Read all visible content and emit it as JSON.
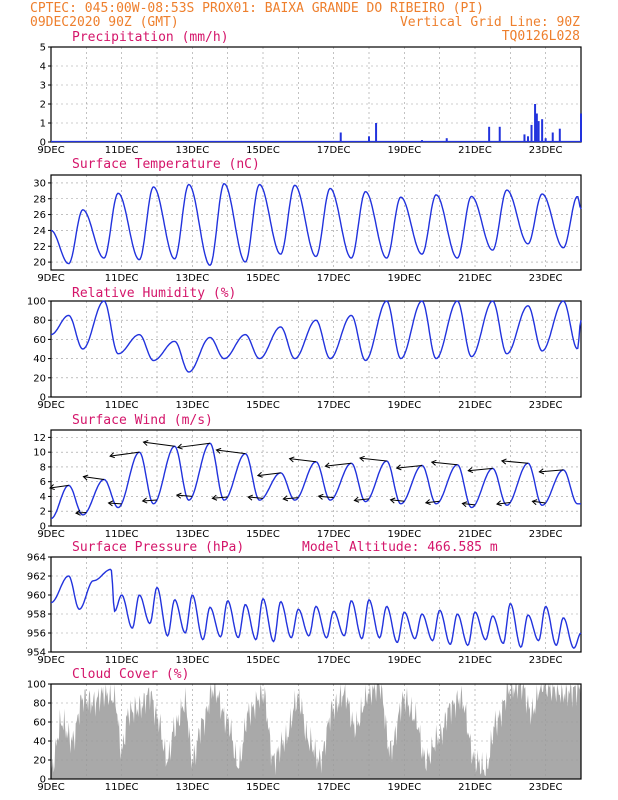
{
  "header": {
    "line1": "CPTEC:  045:00W-08:53S  PROX01: BAIXA GRANDE DO RIBEIRO (PI)",
    "date": "09DEC2020 90Z (GMT)",
    "grid_note": "Vertical Grid Line: 90Z",
    "code": "TQ0126L028"
  },
  "colors": {
    "header": "#ee7f2d",
    "titles": "#d4156a",
    "series": "#2233dd",
    "cloud": "#a9a9a9"
  },
  "x_tick_labels": [
    "9DEC",
    "11DEC",
    "13DEC",
    "15DEC",
    "17DEC",
    "19DEC",
    "21DEC",
    "23DEC"
  ],
  "chart_data": [
    {
      "type": "bar",
      "title": "Precipitation (mm/h)",
      "ylim": [
        0,
        5
      ],
      "y_ticks": [
        0,
        1,
        2,
        3,
        4,
        5
      ],
      "x_range_days": [
        9,
        24
      ],
      "x": [
        9.2,
        10.0,
        12.0,
        14.0,
        16.8,
        17.2,
        18.0,
        18.2,
        19.5,
        20.2,
        21.1,
        21.4,
        21.7,
        22.0,
        22.2,
        22.4,
        22.5,
        22.6,
        22.7,
        22.75,
        22.8,
        22.9,
        23.0,
        23.2,
        23.4,
        24.0
      ],
      "values": [
        0.05,
        0.05,
        0.05,
        0.05,
        0.05,
        0.5,
        0.3,
        1.0,
        0.1,
        0.2,
        0.05,
        0.8,
        0.8,
        0.05,
        0.05,
        0.4,
        0.3,
        0.9,
        2.0,
        1.5,
        1.1,
        1.2,
        0.2,
        0.5,
        0.7,
        1.5
      ]
    },
    {
      "type": "line",
      "title": "Surface Temperature (nC)",
      "ylim": [
        19,
        31
      ],
      "y_ticks": [
        20,
        22,
        24,
        26,
        28,
        30
      ],
      "x_range_days": [
        9,
        24
      ],
      "mins": [
        [
          9.5,
          19.8
        ],
        [
          10.5,
          20.5
        ],
        [
          11.5,
          20.3
        ],
        [
          12.5,
          20.4
        ],
        [
          13.5,
          19.6
        ],
        [
          14.5,
          20.0
        ],
        [
          15.5,
          21.0
        ],
        [
          16.5,
          20.7
        ],
        [
          17.5,
          20.5
        ],
        [
          18.5,
          20.5
        ],
        [
          19.5,
          21.0
        ],
        [
          20.5,
          20.5
        ],
        [
          21.5,
          21.5
        ],
        [
          22.5,
          22.3
        ],
        [
          23.5,
          21.8
        ]
      ],
      "maxs": [
        [
          9.0,
          24.0
        ],
        [
          9.9,
          26.6
        ],
        [
          10.9,
          28.7
        ],
        [
          11.9,
          29.5
        ],
        [
          12.9,
          29.8
        ],
        [
          13.9,
          29.9
        ],
        [
          14.9,
          29.8
        ],
        [
          15.9,
          29.7
        ],
        [
          16.9,
          29.3
        ],
        [
          17.9,
          28.9
        ],
        [
          18.9,
          28.2
        ],
        [
          19.9,
          28.5
        ],
        [
          20.9,
          28.3
        ],
        [
          21.9,
          29.1
        ],
        [
          22.9,
          28.6
        ],
        [
          23.9,
          28.3
        ]
      ],
      "end": [
        24.0,
        26.7
      ]
    },
    {
      "type": "line",
      "title": "Relative Humidity (%)",
      "ylim": [
        0,
        100
      ],
      "y_ticks": [
        0,
        20,
        40,
        60,
        80,
        100
      ],
      "x_range_days": [
        9,
        24
      ],
      "mins": [
        [
          9.0,
          65
        ],
        [
          9.9,
          50
        ],
        [
          10.9,
          45
        ],
        [
          11.9,
          38
        ],
        [
          12.9,
          26
        ],
        [
          13.9,
          40
        ],
        [
          14.9,
          40
        ],
        [
          15.9,
          40
        ],
        [
          16.9,
          40
        ],
        [
          17.9,
          38
        ],
        [
          18.9,
          40
        ],
        [
          19.9,
          40
        ],
        [
          20.9,
          42
        ],
        [
          21.9,
          45
        ],
        [
          22.9,
          48
        ],
        [
          23.9,
          50
        ]
      ],
      "maxs": [
        [
          9.5,
          85
        ],
        [
          10.5,
          100
        ],
        [
          11.5,
          65
        ],
        [
          12.5,
          58
        ],
        [
          13.5,
          62
        ],
        [
          14.5,
          65
        ],
        [
          15.5,
          73
        ],
        [
          16.5,
          80
        ],
        [
          17.5,
          85
        ],
        [
          18.5,
          100
        ],
        [
          19.5,
          100
        ],
        [
          20.5,
          100
        ],
        [
          21.5,
          100
        ],
        [
          22.5,
          95
        ],
        [
          23.5,
          100
        ]
      ],
      "end": [
        24.0,
        80
      ]
    },
    {
      "type": "line",
      "title": "Surface Wind (m/s)",
      "ylim": [
        0,
        13
      ],
      "y_ticks": [
        0,
        2,
        4,
        6,
        8,
        10,
        12
      ],
      "x_range_days": [
        9,
        24
      ],
      "mins": [
        [
          9.0,
          1.0
        ],
        [
          9.9,
          1.5
        ],
        [
          10.9,
          2.5
        ],
        [
          11.9,
          3.0
        ],
        [
          12.9,
          3.5
        ],
        [
          13.9,
          3.5
        ],
        [
          14.9,
          3.5
        ],
        [
          15.9,
          3.5
        ],
        [
          16.9,
          3.5
        ],
        [
          17.9,
          3.3
        ],
        [
          18.9,
          3.0
        ],
        [
          19.9,
          3.0
        ],
        [
          20.9,
          2.5
        ],
        [
          21.9,
          2.8
        ],
        [
          22.9,
          2.8
        ],
        [
          23.9,
          3.0
        ]
      ],
      "maxs": [
        [
          9.5,
          5.5
        ],
        [
          10.5,
          6.3
        ],
        [
          11.5,
          10.0
        ],
        [
          12.5,
          10.8
        ],
        [
          13.5,
          11.2
        ],
        [
          14.5,
          9.8
        ],
        [
          15.5,
          7.2
        ],
        [
          16.5,
          8.7
        ],
        [
          17.5,
          8.5
        ],
        [
          18.5,
          8.8
        ],
        [
          19.5,
          8.2
        ],
        [
          20.5,
          8.3
        ],
        [
          21.5,
          7.8
        ],
        [
          22.5,
          8.5
        ],
        [
          23.5,
          7.6
        ]
      ],
      "end": [
        24.0,
        3.0
      ]
    },
    {
      "type": "line",
      "title": "Surface Pressure (hPa)",
      "annotation": "Model Altitude: 466.585  m",
      "ylim": [
        954,
        964
      ],
      "y_ticks": [
        954,
        956,
        958,
        960,
        962,
        964
      ],
      "x_range_days": [
        9,
        24
      ],
      "mins": [
        [
          9.0,
          959.2
        ],
        [
          9.8,
          958.5
        ],
        [
          10.8,
          958.3
        ],
        [
          11.3,
          956.5
        ],
        [
          11.8,
          957.0
        ],
        [
          12.3,
          955.7
        ],
        [
          12.8,
          956.0
        ],
        [
          13.3,
          955.3
        ],
        [
          13.8,
          955.6
        ],
        [
          14.3,
          955.5
        ],
        [
          14.8,
          955.3
        ],
        [
          15.3,
          955.1
        ],
        [
          15.8,
          955.5
        ],
        [
          16.3,
          955.7
        ],
        [
          16.8,
          955.5
        ],
        [
          17.3,
          955.7
        ],
        [
          17.8,
          955.4
        ],
        [
          18.3,
          955.5
        ],
        [
          18.8,
          955.0
        ],
        [
          19.3,
          955.4
        ],
        [
          19.8,
          955.2
        ],
        [
          20.3,
          954.8
        ],
        [
          20.8,
          954.7
        ],
        [
          21.3,
          955.3
        ],
        [
          21.8,
          954.9
        ],
        [
          22.3,
          954.5
        ],
        [
          22.8,
          955.2
        ],
        [
          23.3,
          954.7
        ],
        [
          23.8,
          954.4
        ]
      ],
      "maxs": [
        [
          9.5,
          962.0
        ],
        [
          10.2,
          961.5
        ],
        [
          10.7,
          962.7
        ],
        [
          11.0,
          960.0
        ],
        [
          11.5,
          960.0
        ],
        [
          12.0,
          960.8
        ],
        [
          12.5,
          959.5
        ],
        [
          13.0,
          960.0
        ],
        [
          13.5,
          958.7
        ],
        [
          14.0,
          959.4
        ],
        [
          14.5,
          959.0
        ],
        [
          15.0,
          959.6
        ],
        [
          15.5,
          959.3
        ],
        [
          16.0,
          958.5
        ],
        [
          16.5,
          958.8
        ],
        [
          17.0,
          958.3
        ],
        [
          17.5,
          959.4
        ],
        [
          18.0,
          959.5
        ],
        [
          18.5,
          958.8
        ],
        [
          19.0,
          958.2
        ],
        [
          19.5,
          958.0
        ],
        [
          20.0,
          958.4
        ],
        [
          20.5,
          958.0
        ],
        [
          21.0,
          958.2
        ],
        [
          21.5,
          957.8
        ],
        [
          22.0,
          959.1
        ],
        [
          22.5,
          957.9
        ],
        [
          23.0,
          958.8
        ],
        [
          23.5,
          957.6
        ]
      ],
      "end": [
        24.0,
        956.0
      ]
    },
    {
      "type": "area",
      "title": "Cloud Cover (%)",
      "ylim": [
        0,
        100
      ],
      "y_ticks": [
        0,
        20,
        40,
        60,
        80,
        100
      ],
      "x_range_days": [
        9,
        24
      ],
      "profile": [
        [
          9.0,
          10
        ],
        [
          9.3,
          60
        ],
        [
          9.6,
          40
        ],
        [
          9.9,
          85
        ],
        [
          10.2,
          80
        ],
        [
          10.5,
          90
        ],
        [
          10.8,
          85
        ],
        [
          11.0,
          30
        ],
        [
          11.2,
          70
        ],
        [
          11.5,
          75
        ],
        [
          11.8,
          90
        ],
        [
          12.0,
          65
        ],
        [
          12.3,
          20
        ],
        [
          12.5,
          55
        ],
        [
          12.8,
          80
        ],
        [
          13.0,
          20
        ],
        [
          13.3,
          60
        ],
        [
          13.6,
          95
        ],
        [
          14.0,
          60
        ],
        [
          14.3,
          15
        ],
        [
          14.6,
          70
        ],
        [
          15.0,
          90
        ],
        [
          15.3,
          20
        ],
        [
          15.6,
          40
        ],
        [
          16.0,
          85
        ],
        [
          16.3,
          40
        ],
        [
          16.6,
          20
        ],
        [
          17.0,
          75
        ],
        [
          17.3,
          90
        ],
        [
          17.6,
          55
        ],
        [
          18.0,
          90
        ],
        [
          18.3,
          100
        ],
        [
          18.6,
          30
        ],
        [
          19.0,
          85
        ],
        [
          19.3,
          65
        ],
        [
          19.6,
          20
        ],
        [
          20.0,
          45
        ],
        [
          20.3,
          75
        ],
        [
          20.6,
          85
        ],
        [
          21.0,
          20
        ],
        [
          21.3,
          10
        ],
        [
          21.6,
          60
        ],
        [
          22.0,
          95
        ],
        [
          22.3,
          100
        ],
        [
          22.6,
          70
        ],
        [
          22.9,
          100
        ],
        [
          23.2,
          95
        ],
        [
          23.5,
          90
        ],
        [
          24.0,
          95
        ]
      ]
    }
  ]
}
